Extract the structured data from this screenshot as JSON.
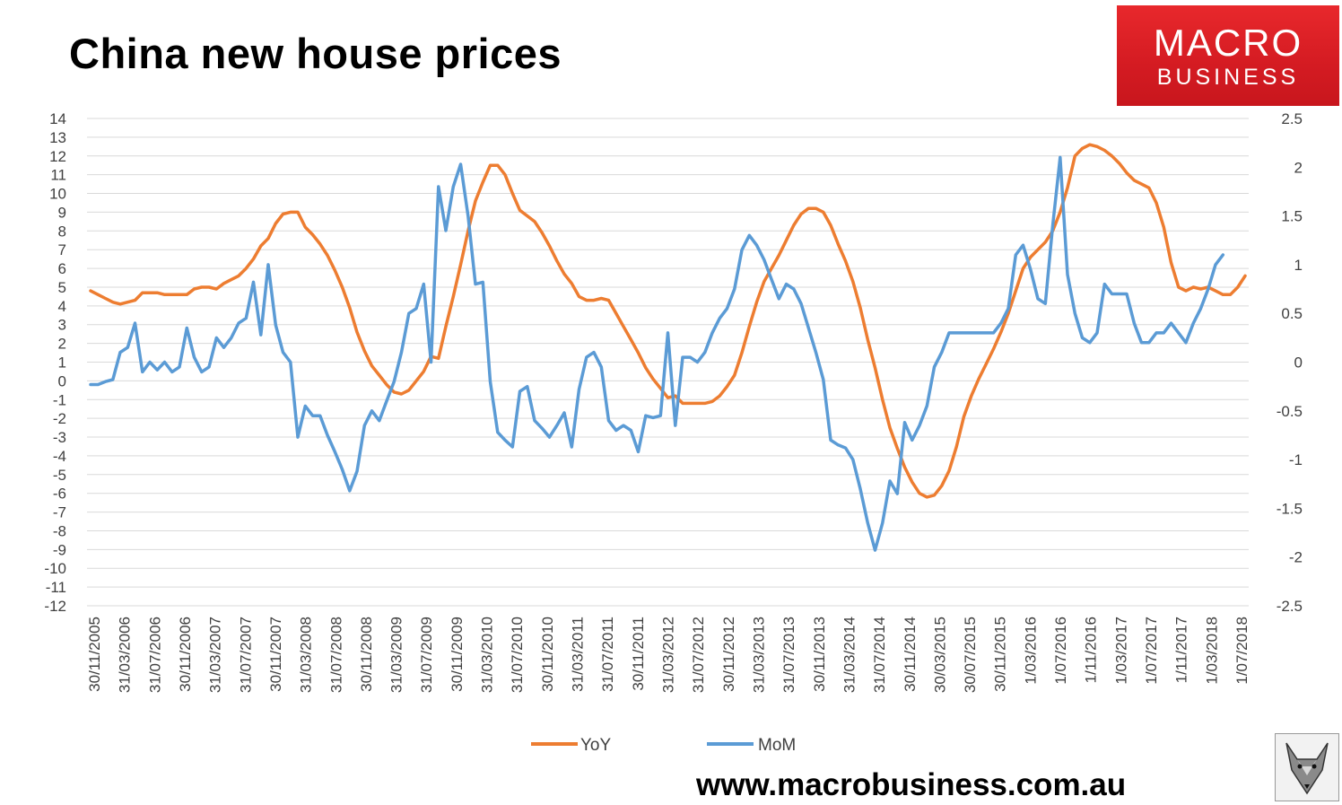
{
  "header": {
    "title": "China new house prices"
  },
  "logo": {
    "line1": "MACRO",
    "line2": "BUSINESS"
  },
  "footer": {
    "website": "www.macrobusiness.com.au"
  },
  "chart_data": {
    "type": "line",
    "title": "China new house prices",
    "y_left": {
      "min": -12,
      "max": 14,
      "step": 1,
      "ticks": [
        14,
        13,
        12,
        11,
        10,
        9,
        8,
        7,
        6,
        5,
        4,
        3,
        2,
        1,
        0,
        -1,
        -2,
        -3,
        -4,
        -5,
        -6,
        -7,
        -8,
        -9,
        -10,
        -11,
        -12
      ]
    },
    "y_right": {
      "min": -2.5,
      "max": 2.5,
      "step": 0.5,
      "ticks": [
        "2.5",
        "2",
        "1.5",
        "1",
        "0.5",
        "0",
        "-0.5",
        "-1",
        "-1.5",
        "-2",
        "-2.5"
      ]
    },
    "x_tick_labels": [
      "30/11/2005",
      "31/03/2006",
      "31/07/2006",
      "30/11/2006",
      "31/03/2007",
      "31/07/2007",
      "30/11/2007",
      "31/03/2008",
      "31/07/2008",
      "30/11/2008",
      "31/03/2009",
      "31/07/2009",
      "30/11/2009",
      "31/03/2010",
      "31/07/2010",
      "30/11/2010",
      "31/03/2011",
      "31/07/2011",
      "30/11/2011",
      "31/03/2012",
      "31/07/2012",
      "30/11/2012",
      "31/03/2013",
      "31/07/2013",
      "30/11/2013",
      "31/03/2014",
      "31/07/2014",
      "30/11/2014",
      "30/03/2015",
      "30/07/2015",
      "30/11/2015",
      "1/03/2016",
      "1/07/2016",
      "1/11/2016",
      "1/03/2017",
      "1/07/2017",
      "1/11/2017",
      "1/03/2018",
      "1/07/2018"
    ],
    "grid": true,
    "legend_position": "bottom",
    "colors": {
      "YoY": "#ed7d31",
      "MoM": "#5b9bd5"
    },
    "series": [
      {
        "name": "YoY",
        "axis": "left",
        "values": [
          4.8,
          4.6,
          4.4,
          4.2,
          4.1,
          4.2,
          4.3,
          4.7,
          4.7,
          4.7,
          4.6,
          4.6,
          4.6,
          4.6,
          4.9,
          5.0,
          5.0,
          4.9,
          5.2,
          5.4,
          5.6,
          6.0,
          6.5,
          7.2,
          7.6,
          8.4,
          8.9,
          9.0,
          9.0,
          8.2,
          7.8,
          7.3,
          6.7,
          5.9,
          5.0,
          3.9,
          2.6,
          1.6,
          0.8,
          0.3,
          -0.2,
          -0.6,
          -0.7,
          -0.5,
          0.0,
          0.5,
          1.3,
          1.2,
          2.9,
          4.5,
          6.2,
          8.0,
          9.6,
          10.6,
          11.5,
          11.5,
          11.0,
          10.0,
          9.1,
          8.8,
          8.5,
          7.9,
          7.2,
          6.4,
          5.7,
          5.2,
          4.5,
          4.3,
          4.3,
          4.4,
          4.3,
          3.6,
          2.9,
          2.2,
          1.5,
          0.7,
          0.1,
          -0.4,
          -0.9,
          -0.8,
          -1.2,
          -1.2,
          -1.2,
          -1.2,
          -1.1,
          -0.8,
          -0.3,
          0.3,
          1.5,
          2.9,
          4.2,
          5.3,
          6.0,
          6.7,
          7.5,
          8.3,
          8.9,
          9.2,
          9.2,
          9.0,
          8.3,
          7.3,
          6.4,
          5.3,
          3.9,
          2.2,
          0.7,
          -1.0,
          -2.5,
          -3.6,
          -4.6,
          -5.4,
          -6.0,
          -6.2,
          -6.1,
          -5.6,
          -4.8,
          -3.5,
          -1.9,
          -0.8,
          0.1,
          0.9,
          1.7,
          2.6,
          3.6,
          4.8,
          6.0,
          6.6,
          7.0,
          7.4,
          8.0,
          9.0,
          10.3,
          12.0,
          12.4,
          12.6,
          12.5,
          12.3,
          12.0,
          11.6,
          11.1,
          10.7,
          10.5,
          10.3,
          9.5,
          8.2,
          6.3,
          5.0,
          4.8,
          5.0,
          4.9,
          5.0,
          4.8,
          4.6,
          4.6,
          5.0,
          5.6
        ]
      },
      {
        "name": "MoM",
        "axis": "right",
        "values": [
          -0.23,
          -0.23,
          -0.2,
          -0.18,
          0.1,
          0.15,
          0.4,
          -0.1,
          0.0,
          -0.08,
          0.0,
          -0.1,
          -0.05,
          0.35,
          0.05,
          -0.1,
          -0.05,
          0.25,
          0.15,
          0.25,
          0.4,
          0.45,
          0.82,
          0.28,
          1.0,
          0.38,
          0.1,
          0.0,
          -0.77,
          -0.45,
          -0.55,
          -0.55,
          -0.75,
          -0.92,
          -1.1,
          -1.32,
          -1.12,
          -0.65,
          -0.5,
          -0.6,
          -0.4,
          -0.2,
          0.1,
          0.5,
          0.55,
          0.8,
          0.0,
          1.8,
          1.35,
          1.8,
          2.03,
          1.5,
          0.8,
          0.82,
          -0.2,
          -0.72,
          -0.8,
          -0.87,
          -0.3,
          -0.25,
          -0.6,
          -0.68,
          -0.77,
          -0.65,
          -0.52,
          -0.87,
          -0.28,
          0.05,
          0.1,
          -0.05,
          -0.6,
          -0.7,
          -0.65,
          -0.7,
          -0.92,
          -0.55,
          -0.57,
          -0.55,
          0.3,
          -0.65,
          0.05,
          0.05,
          0.0,
          0.1,
          0.3,
          0.45,
          0.55,
          0.75,
          1.15,
          1.3,
          1.2,
          1.05,
          0.85,
          0.65,
          0.8,
          0.75,
          0.6,
          0.35,
          0.1,
          -0.18,
          -0.8,
          -0.85,
          -0.88,
          -1.0,
          -1.3,
          -1.65,
          -1.93,
          -1.65,
          -1.22,
          -1.35,
          -0.62,
          -0.8,
          -0.65,
          -0.45,
          -0.05,
          0.1,
          0.3,
          0.3,
          0.3,
          0.3,
          0.3,
          0.3,
          0.3,
          0.4,
          0.55,
          1.1,
          1.2,
          0.95,
          0.65,
          0.6,
          1.4,
          2.1,
          0.9,
          0.5,
          0.25,
          0.2,
          0.3,
          0.8,
          0.7,
          0.7,
          0.7,
          0.4,
          0.2,
          0.2,
          0.3,
          0.3,
          0.4,
          0.3,
          0.2,
          0.4,
          0.55,
          0.75,
          1.0,
          1.1
        ]
      }
    ]
  }
}
